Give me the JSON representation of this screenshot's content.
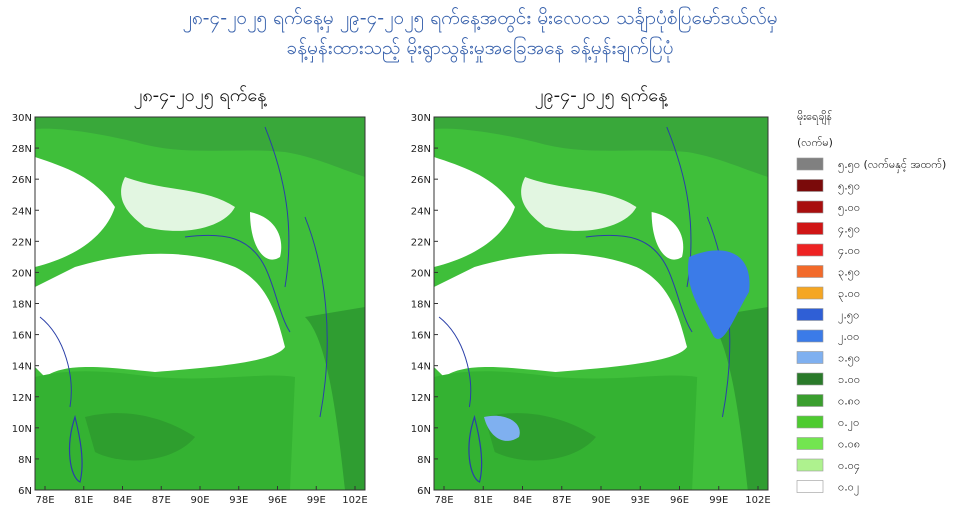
{
  "header": {
    "title_line1": "၂၈-၄-၂၀၂၅ ရက်နေ့မှ ၂၉-၄-၂၀၂၅ ရက်နေ့အတွင်း မိုးလေဝသ သင်္ချာပုံစံပြမော်ဒယ်လ်မှ",
    "title_line2": "ခန့်မှန်းထားသည့် မိုးရွာသွန်းမှုအခြေအနေ ခန့်မှန်းချက်ပြပုံ"
  },
  "maps": [
    {
      "title": "၂၈-၄-၂၀၂၅ ရက်နေ့"
    },
    {
      "title": "၂၉-၄-၂၀၂၅ ရက်နေ့"
    }
  ],
  "lat_ticks": [
    "30N",
    "28N",
    "26N",
    "24N",
    "22N",
    "20N",
    "18N",
    "16N",
    "14N",
    "12N",
    "10N",
    "8N",
    "6N"
  ],
  "lon_ticks": [
    "78E",
    "81E",
    "84E",
    "87E",
    "90E",
    "93E",
    "96E",
    "99E",
    "102E"
  ],
  "legend": {
    "title": "မိုးရေချိန်",
    "unit": "(လက်မ)",
    "items": [
      {
        "label": "၅.၅၀ (လက်မနှင့် အထက်)",
        "color": "#808080"
      },
      {
        "label": "၅.၅၀",
        "color": "#7a0a0a"
      },
      {
        "label": "၅.၀၀",
        "color": "#a80e0e"
      },
      {
        "label": "၄.၅၀",
        "color": "#d01515"
      },
      {
        "label": "၄.၀၀",
        "color": "#ee2222"
      },
      {
        "label": "၃.၅၀",
        "color": "#f26a2a"
      },
      {
        "label": "၃.၀၀",
        "color": "#f5a623"
      },
      {
        "label": "၂.၅၀",
        "color": "#2f5fd6"
      },
      {
        "label": "၂.၀၀",
        "color": "#3b7be8"
      },
      {
        "label": "၁.၅၀",
        "color": "#7fb0f0"
      },
      {
        "label": "၁.၀၀",
        "color": "#2a7a2a"
      },
      {
        "label": "၀.၈၀",
        "color": "#3a9e2e"
      },
      {
        "label": "၀.၂၀",
        "color": "#4ecb30"
      },
      {
        "label": "၀.၀၈",
        "color": "#73e550"
      },
      {
        "label": "၀.၀၄",
        "color": "#aef28e"
      },
      {
        "label": "၀.၀၂",
        "color": "#ffffff"
      }
    ]
  }
}
